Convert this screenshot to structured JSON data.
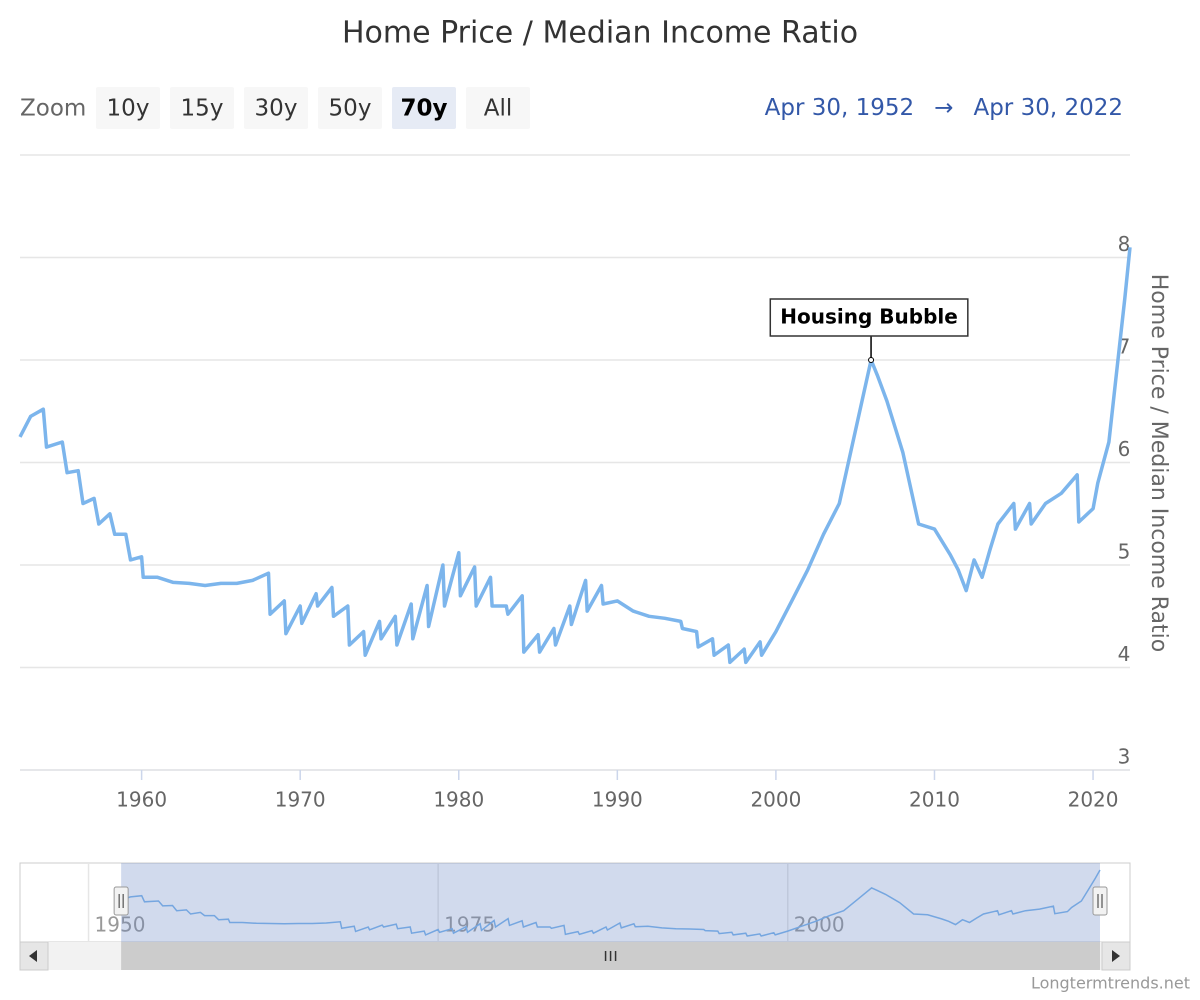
{
  "chart_data": {
    "type": "line",
    "title": "Home Price / Median Income Ratio",
    "zoom_label": "Zoom",
    "zoom_buttons": [
      "10y",
      "15y",
      "30y",
      "50y",
      "70y",
      "All"
    ],
    "zoom_selected": 4,
    "date_range": {
      "from": "Apr 30, 1952",
      "arrow": "→",
      "to": "Apr 30, 2022"
    },
    "y_axis_label": "Home Price / Median Income Ratio",
    "credit": "Longtermtrends.net",
    "color": "#7cb5ec",
    "grid": true,
    "xlim": [
      1952.33,
      2022.33
    ],
    "xticks": [
      1960,
      1970,
      1980,
      1990,
      2000,
      2010,
      2020
    ],
    "ylim": [
      3,
      9
    ],
    "yticks": [
      3,
      4,
      5,
      6,
      7,
      8
    ],
    "navigator_xlim": [
      1947.1,
      2022.33
    ],
    "navigator_xticks": [
      1950,
      1975,
      2000
    ],
    "annotations": [
      {
        "text": "Housing Bubble",
        "x": 2006,
        "y": 7.0
      }
    ],
    "x": [
      1952.33,
      1953.0,
      1953.8,
      1954.0,
      1955.0,
      1955.3,
      1956.0,
      1956.3,
      1957.0,
      1957.3,
      1958.0,
      1958.3,
      1959.0,
      1959.3,
      1960.0,
      1960.1,
      1961.0,
      1962.0,
      1963.0,
      1964.0,
      1965.0,
      1966.0,
      1967.0,
      1968.0,
      1968.1,
      1969.0,
      1969.1,
      1970.0,
      1970.1,
      1971.0,
      1971.1,
      1972.0,
      1972.1,
      1973.0,
      1973.1,
      1974.0,
      1974.1,
      1975.0,
      1975.1,
      1976.0,
      1976.1,
      1977.0,
      1977.1,
      1978.0,
      1978.1,
      1979.0,
      1979.1,
      1980.0,
      1980.1,
      1981.0,
      1981.1,
      1982.0,
      1982.1,
      1983.0,
      1983.1,
      1984.0,
      1984.1,
      1985.0,
      1985.1,
      1986.0,
      1986.1,
      1987.0,
      1987.1,
      1988.0,
      1988.1,
      1989.0,
      1989.1,
      1990.0,
      1991.0,
      1992.0,
      1993.0,
      1994.0,
      1994.1,
      1995.0,
      1995.1,
      1996.0,
      1996.1,
      1997.0,
      1997.1,
      1998.0,
      1998.1,
      1999.0,
      1999.1,
      2000.0,
      2001.0,
      2002.0,
      2003.0,
      2004.0,
      2005.0,
      2006.0,
      2006.4,
      2007.0,
      2008.0,
      2009.0,
      2010.0,
      2011.0,
      2011.5,
      2012.0,
      2012.5,
      2013.0,
      2013.5,
      2014.0,
      2015.0,
      2015.1,
      2016.0,
      2016.1,
      2017.0,
      2018.0,
      2019.0,
      2019.1,
      2020.0,
      2020.3,
      2021.0,
      2021.5,
      2022.0,
      2022.33
    ],
    "values": [
      6.25,
      6.45,
      6.52,
      6.15,
      6.2,
      5.9,
      5.92,
      5.6,
      5.65,
      5.4,
      5.5,
      5.3,
      5.3,
      5.05,
      5.08,
      4.88,
      4.88,
      4.83,
      4.82,
      4.8,
      4.82,
      4.82,
      4.85,
      4.92,
      4.52,
      4.65,
      4.33,
      4.6,
      4.43,
      4.72,
      4.6,
      4.78,
      4.5,
      4.6,
      4.22,
      4.35,
      4.12,
      4.45,
      4.28,
      4.5,
      4.22,
      4.62,
      4.28,
      4.8,
      4.4,
      5.0,
      4.6,
      5.12,
      4.7,
      4.98,
      4.6,
      4.88,
      4.6,
      4.6,
      4.52,
      4.7,
      4.15,
      4.32,
      4.15,
      4.38,
      4.22,
      4.6,
      4.42,
      4.85,
      4.55,
      4.8,
      4.62,
      4.65,
      4.55,
      4.5,
      4.48,
      4.45,
      4.38,
      4.35,
      4.2,
      4.28,
      4.12,
      4.22,
      4.05,
      4.18,
      4.05,
      4.25,
      4.12,
      4.35,
      4.65,
      4.95,
      5.3,
      5.6,
      6.3,
      7.0,
      6.85,
      6.6,
      6.1,
      5.4,
      5.35,
      5.1,
      4.95,
      4.75,
      5.05,
      4.88,
      5.15,
      5.4,
      5.6,
      5.35,
      5.6,
      5.4,
      5.6,
      5.7,
      5.88,
      5.42,
      5.55,
      5.8,
      6.2,
      6.9,
      7.6,
      8.1
    ]
  }
}
